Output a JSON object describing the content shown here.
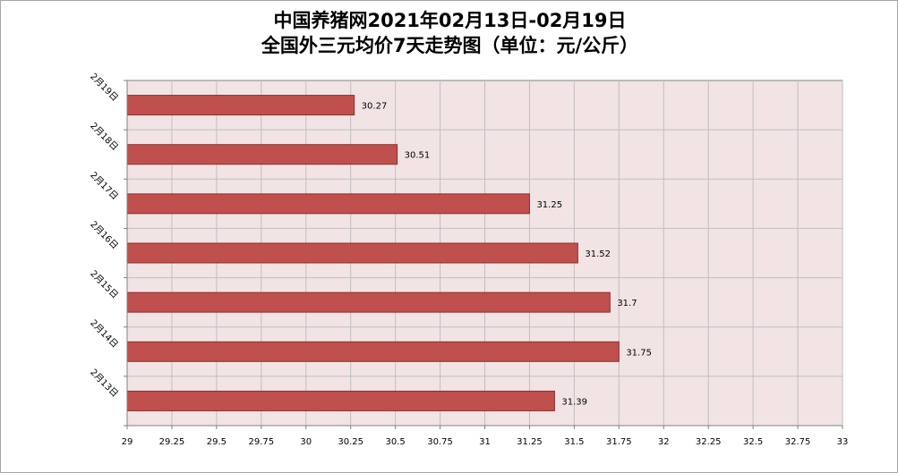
{
  "colors": {
    "bar_fill": "#c0504d",
    "bar_stroke": "#8c2f2d",
    "plot_background": "#f2e4e4",
    "grid": "#bfbfbf",
    "axis": "#808080"
  },
  "chart_data": {
    "type": "bar",
    "orientation": "horizontal",
    "title": "中国养猪网2021年02月13日-02月19日",
    "subtitle": "全国外三元均价7天走势图（单位：元/公斤）",
    "categories": [
      "2月19日",
      "2月18日",
      "2月17日",
      "2月16日",
      "2月15日",
      "2月14日",
      "2月13日"
    ],
    "values": [
      30.27,
      30.51,
      31.25,
      31.52,
      31.7,
      31.75,
      31.39
    ],
    "value_labels": [
      "30.27",
      "30.51",
      "31.25",
      "31.52",
      "31.7",
      "31.75",
      "31.39"
    ],
    "x_ticks": [
      "29",
      "29.25",
      "29.5",
      "29.75",
      "30",
      "30.25",
      "30.5",
      "30.75",
      "31",
      "31.25",
      "31.5",
      "31.75",
      "32",
      "32.25",
      "32.5",
      "32.75",
      "33"
    ],
    "xlim": [
      29,
      33
    ],
    "x_step": 0.25,
    "grid": true,
    "legend": "none"
  }
}
